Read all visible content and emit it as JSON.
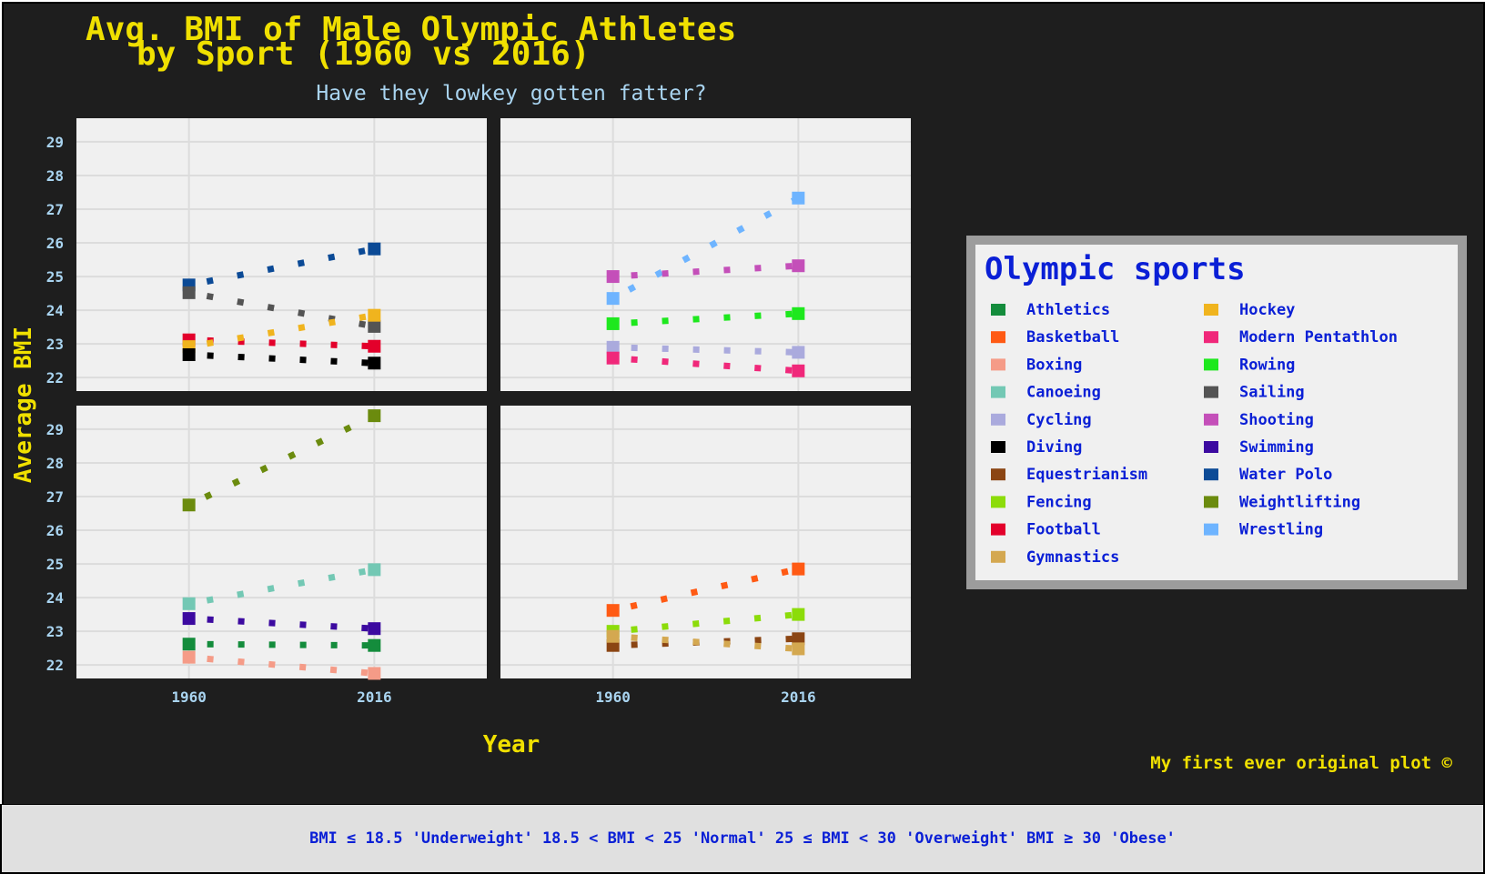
{
  "title_line1": "Avg. BMI of Male Olympic Athletes",
  "title_line2": "by Sport (1960 vs 2016)",
  "subtitle": "Have they lowkey gotten fatter?",
  "caption": "My first ever original plot ©",
  "footnote": "BMI ≤ 18.5 'Underweight' 18.5 < BMI < 25 'Normal' 25 ≤ BMI < 30 'Overweight' BMI ≥ 30 'Obese'",
  "legend_title": "Olympic sports",
  "colors": {
    "background": "#1e1e1e",
    "panel": "#f0f0f0",
    "title": "#f0e000",
    "subtitle": "#a9d4f0",
    "axis_text": "#a9d4f0",
    "legend_text": "#0a1fd6",
    "legend_border": "#9c9c9c"
  },
  "chart_data": {
    "type": "scatter",
    "title": "Avg. BMI of Male Olympic Athletes by Sport (1960 vs 2016)",
    "subtitle": "Have they lowkey gotten fatter?",
    "xlabel": "Year",
    "ylabel": "Average BMI",
    "x_ticks": [
      "1960",
      "2016"
    ],
    "y_ticks": [
      22,
      23,
      24,
      25,
      26,
      27,
      28,
      29
    ],
    "ylim": [
      21.6,
      29.7
    ],
    "xlim": [
      1926,
      2050
    ],
    "grid": true,
    "legend_position": "right",
    "facets": [
      {
        "panel": "top-left",
        "series": [
          {
            "name": "Water Polo",
            "color": "#0b4a96",
            "x": [
              1960,
              2016
            ],
            "y": [
              24.75,
              25.82
            ]
          },
          {
            "name": "Sailing",
            "color": "#545454",
            "x": [
              1960,
              2016
            ],
            "y": [
              24.52,
              23.52
            ]
          },
          {
            "name": "Football",
            "color": "#e3002b",
            "x": [
              1960,
              2016
            ],
            "y": [
              23.12,
              22.93
            ]
          },
          {
            "name": "Hockey",
            "color": "#f0b41e",
            "x": [
              1960,
              2016
            ],
            "y": [
              22.92,
              23.85
            ]
          },
          {
            "name": "Diving",
            "color": "#000000",
            "x": [
              1960,
              2016
            ],
            "y": [
              22.68,
              22.43
            ]
          }
        ]
      },
      {
        "panel": "top-right",
        "series": [
          {
            "name": "Wrestling",
            "color": "#6eb4ff",
            "x": [
              1960,
              2016
            ],
            "y": [
              24.35,
              27.33
            ]
          },
          {
            "name": "Shooting",
            "color": "#c44fb9",
            "x": [
              1960,
              2016
            ],
            "y": [
              25.0,
              25.32
            ]
          },
          {
            "name": "Rowing",
            "color": "#1ee81e",
            "x": [
              1960,
              2016
            ],
            "y": [
              23.6,
              23.9
            ]
          },
          {
            "name": "Cycling",
            "color": "#aaaadd",
            "x": [
              1960,
              2016
            ],
            "y": [
              22.9,
              22.75
            ]
          },
          {
            "name": "Modern Pentathlon",
            "color": "#f0287a",
            "x": [
              1960,
              2016
            ],
            "y": [
              22.58,
              22.2
            ]
          }
        ]
      },
      {
        "panel": "bottom-left",
        "series": [
          {
            "name": "Weightlifting",
            "color": "#6b8b0e",
            "x": [
              1960,
              2016
            ],
            "y": [
              26.75,
              29.4
            ]
          },
          {
            "name": "Canoeing",
            "color": "#73c8b4",
            "x": [
              1960,
              2016
            ],
            "y": [
              23.82,
              24.83
            ]
          },
          {
            "name": "Swimming",
            "color": "#3c0aa0",
            "x": [
              1960,
              2016
            ],
            "y": [
              23.38,
              23.08
            ]
          },
          {
            "name": "Athletics",
            "color": "#148c3c",
            "x": [
              1960,
              2016
            ],
            "y": [
              22.62,
              22.58
            ]
          },
          {
            "name": "Boxing",
            "color": "#f59b87",
            "x": [
              1960,
              2016
            ],
            "y": [
              22.23,
              21.75
            ]
          }
        ]
      },
      {
        "panel": "bottom-right",
        "series": [
          {
            "name": "Basketball",
            "color": "#ff5a14",
            "x": [
              1960,
              2016
            ],
            "y": [
              23.62,
              24.85
            ]
          },
          {
            "name": "Fencing",
            "color": "#8cdc0a",
            "x": [
              1960,
              2016
            ],
            "y": [
              23.0,
              23.5
            ]
          },
          {
            "name": "Equestrianism",
            "color": "#8b4513",
            "x": [
              1960,
              2016
            ],
            "y": [
              22.58,
              22.78
            ]
          },
          {
            "name": "Gymnastics",
            "color": "#d4a850",
            "x": [
              1960,
              2016
            ],
            "y": [
              22.85,
              22.48
            ]
          }
        ]
      }
    ],
    "legend": [
      {
        "name": "Athletics",
        "color": "#148c3c"
      },
      {
        "name": "Basketball",
        "color": "#ff5a14"
      },
      {
        "name": "Boxing",
        "color": "#f59b87"
      },
      {
        "name": "Canoeing",
        "color": "#73c8b4"
      },
      {
        "name": "Cycling",
        "color": "#aaaadd"
      },
      {
        "name": "Diving",
        "color": "#000000"
      },
      {
        "name": "Equestrianism",
        "color": "#8b4513"
      },
      {
        "name": "Fencing",
        "color": "#8cdc0a"
      },
      {
        "name": "Football",
        "color": "#e3002b"
      },
      {
        "name": "Gymnastics",
        "color": "#d4a850"
      },
      {
        "name": "Hockey",
        "color": "#f0b41e"
      },
      {
        "name": "Modern Pentathlon",
        "color": "#f0287a"
      },
      {
        "name": "Rowing",
        "color": "#1ee81e"
      },
      {
        "name": "Sailing",
        "color": "#545454"
      },
      {
        "name": "Shooting",
        "color": "#c44fb9"
      },
      {
        "name": "Swimming",
        "color": "#3c0aa0"
      },
      {
        "name": "Water Polo",
        "color": "#0b4a96"
      },
      {
        "name": "Weightlifting",
        "color": "#6b8b0e"
      },
      {
        "name": "Wrestling",
        "color": "#6eb4ff"
      }
    ]
  }
}
